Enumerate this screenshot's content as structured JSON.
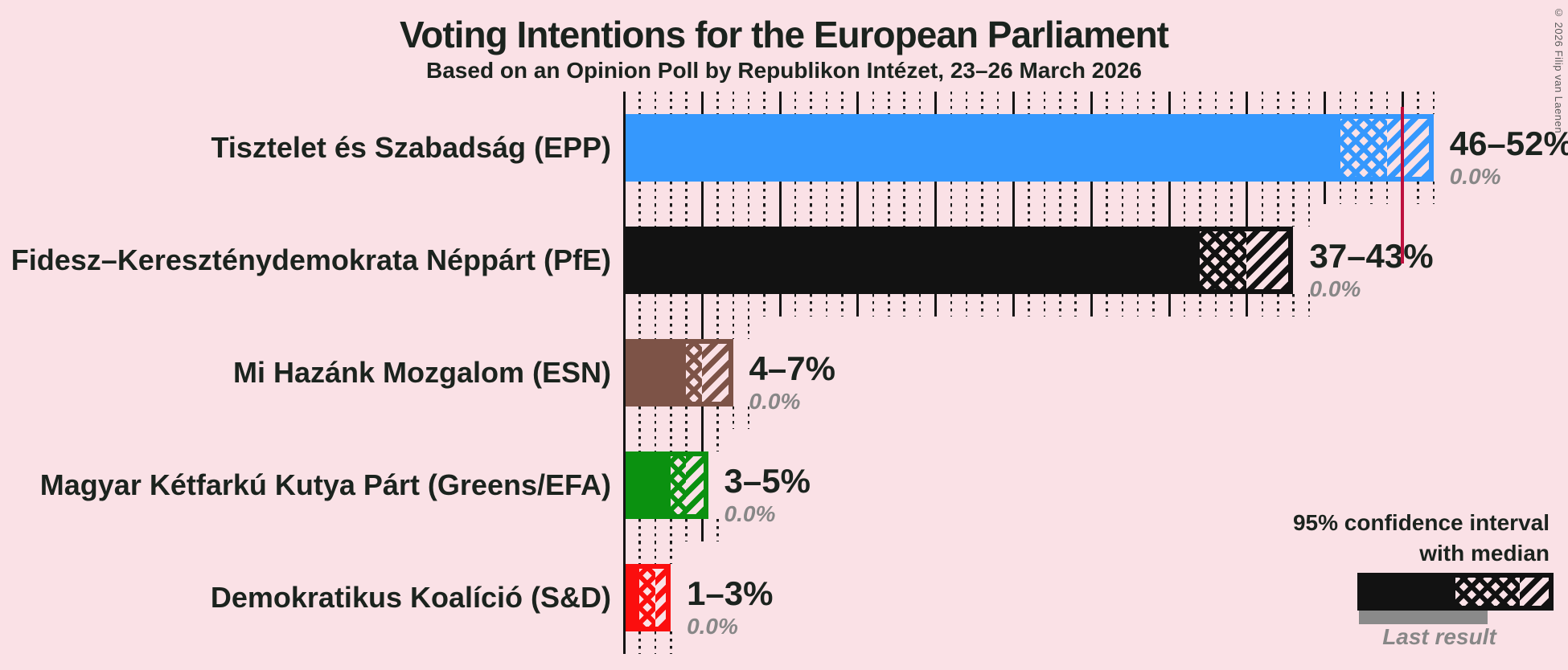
{
  "title": "Voting Intentions for the European Parliament",
  "subtitle": "Based on an Opinion Poll by Republikon Intézet, 23–26 March 2026",
  "copyright_notice": "© 2026 Filip van Laenen",
  "colors": {
    "background": "#fae1e6",
    "text": "#1b231e",
    "muted_gray": "#878787",
    "majority_line": "#bd0f3e",
    "last_result_bar": "#8a8a8a"
  },
  "chart_data": {
    "type": "bar",
    "orientation": "horizontal",
    "unit": "%",
    "title": "Voting Intentions for the European Parliament",
    "subtitle": "Based on an Opinion Poll by Republikon Intézet, 23–26 March 2026",
    "x_axis": {
      "min_pct": 0,
      "max_pct": 52,
      "solid_gridline_step_pct": 5,
      "dotted_gridline_step_pct": 1,
      "grid": "on"
    },
    "majority_line_pct": 50,
    "legend": {
      "position": "bottom-right",
      "ci_label_line1": "95% confidence interval",
      "ci_label_line2": "with median",
      "last_result_label": "Last result"
    },
    "series": [
      {
        "party": "Tisztelet és Szabadság (EPP)",
        "ci_low_pct": 46,
        "median_pct": 49,
        "ci_high_pct": 52,
        "range_label": "46–52%",
        "last_result_pct": 0.0,
        "last_result_label": "0.0%",
        "color": "#3598fd",
        "ticks_to_pct": 52.4
      },
      {
        "party": "Fidesz–Kereszténydemokrata Néppárt (PfE)",
        "ci_low_pct": 37,
        "median_pct": 40,
        "ci_high_pct": 43,
        "range_label": "37–43%",
        "last_result_pct": 0.0,
        "last_result_label": "0.0%",
        "color": "#121212",
        "ticks_to_pct": 44.2
      },
      {
        "party": "Mi Hazánk Mozgalom (ESN)",
        "ci_low_pct": 4,
        "median_pct": 5,
        "ci_high_pct": 7,
        "range_label": "4–7%",
        "last_result_pct": 0.0,
        "last_result_label": "0.0%",
        "color": "#7d5347",
        "ticks_to_pct": 8.2
      },
      {
        "party": "Magyar Kétfarkú Kutya Párt (Greens/EFA)",
        "ci_low_pct": 3,
        "median_pct": 4,
        "ci_high_pct": 5.4,
        "range_label": "3–5%",
        "last_result_pct": 0.0,
        "last_result_label": "0.0%",
        "color": "#0b9110",
        "ticks_to_pct": 6.8
      },
      {
        "party": "Demokratikus Koalíció (S&D)",
        "ci_low_pct": 1,
        "median_pct": 2,
        "ci_high_pct": 3,
        "range_label": "1–3%",
        "last_result_pct": 0.0,
        "last_result_label": "0.0%",
        "color": "#fb0e0e",
        "ticks_to_pct": 3.4
      }
    ]
  }
}
